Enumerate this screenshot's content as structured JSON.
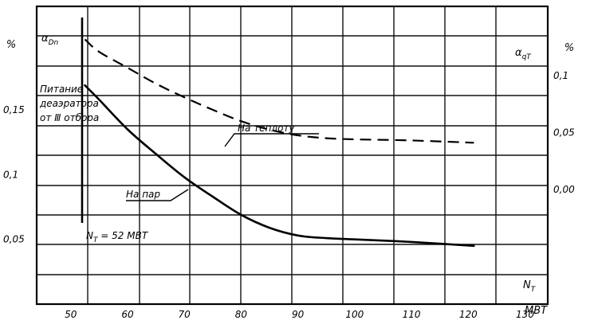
{
  "chart_data": {
    "type": "line",
    "x_axis": {
      "label": "N_T",
      "label_main": "N",
      "label_sub": "T",
      "unit": "МВТ",
      "ticks": [
        50,
        60,
        70,
        80,
        90,
        100,
        110,
        120,
        130
      ],
      "range": [
        44,
        134
      ]
    },
    "left_axis": {
      "label": "α_Dn",
      "label_main": "α",
      "label_sub": "Dn",
      "unit": "%",
      "ticks": [
        0.05,
        0.1,
        0.15
      ],
      "tick_labels": [
        "0,05",
        "0,1",
        "0,15"
      ],
      "range": [
        0.0,
        0.23
      ]
    },
    "right_axis": {
      "label": "α_qT",
      "label_main": "α",
      "label_sub": "qT",
      "unit": "%",
      "ticks": [
        0.0,
        0.05,
        0.1
      ],
      "tick_labels": [
        "0,00",
        "0,05",
        "0,1"
      ],
      "range": [
        -0.101,
        0.161
      ]
    },
    "grid": true,
    "series": [
      {
        "name": "На пар",
        "axis": "left",
        "style": "solid",
        "x": [
          52.5,
          55,
          60,
          65,
          70,
          75,
          80,
          85,
          90,
          95,
          100,
          110,
          121
        ],
        "y": [
          0.169,
          0.158,
          0.135,
          0.116,
          0.098,
          0.083,
          0.069,
          0.059,
          0.053,
          0.051,
          0.05,
          0.048,
          0.045
        ]
      },
      {
        "name": "На теплоту",
        "axis": "right",
        "style": "dashed",
        "x": [
          52.5,
          55,
          60,
          65,
          70,
          75,
          80,
          85,
          90,
          95,
          100,
          110,
          121
        ],
        "y": [
          0.132,
          0.121,
          0.107,
          0.093,
          0.081,
          0.07,
          0.06,
          0.0525,
          0.0475,
          0.045,
          0.044,
          0.043,
          0.041
        ]
      }
    ],
    "vertical_marker": {
      "x": 52,
      "label": "N_T = 52 МВТ",
      "label_main": "N",
      "label_sub": "T",
      "label_rest": " = 52 МВТ"
    },
    "annotations": [
      {
        "lines": [
          "Питание",
          "деаэратора",
          "от Ⅲ отбора"
        ]
      }
    ],
    "labels": {
      "percent_left": "%",
      "percent_right": "%"
    }
  }
}
